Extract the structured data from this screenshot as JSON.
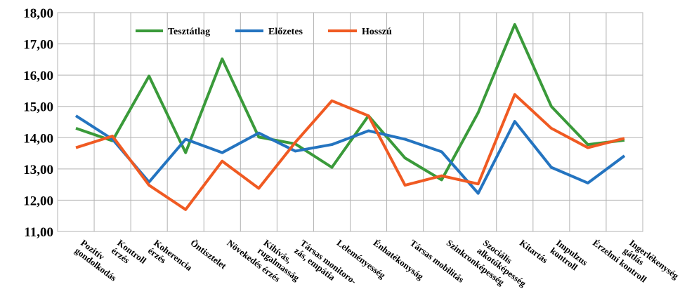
{
  "chart_data": {
    "type": "line",
    "title": "",
    "xlabel": "",
    "ylabel": "",
    "ylim": [
      11,
      18
    ],
    "yticks": [
      "11,00",
      "12,00",
      "13,00",
      "14,00",
      "15,00",
      "16,00",
      "17,00",
      "18,00"
    ],
    "grid": true,
    "legend_position": "top-left",
    "categories": [
      [
        "Pozitív",
        "gondolkodás"
      ],
      [
        "Kontroll",
        "érzés"
      ],
      [
        "Koherencia",
        "érzés"
      ],
      [
        "Öntisztelet"
      ],
      [
        "Növekedés érzés"
      ],
      [
        "Kihívás,",
        "rugalmasság"
      ],
      [
        "Társas monitoro-",
        "zás, empátia"
      ],
      [
        "Leleményesség"
      ],
      [
        "Énhatékonyság"
      ],
      [
        "Társas mobilitás"
      ],
      [
        "Szinkronképesség"
      ],
      [
        "Szociális",
        "alkotóképesség"
      ],
      [
        "Kitartás"
      ],
      [
        "Impulzus",
        "kontroll"
      ],
      [
        "Érzelmi kontroll"
      ],
      [
        "Ingerlékenység",
        "gátlás"
      ]
    ],
    "series": [
      {
        "name": "Tesztátlag",
        "color": "#3a9a3a",
        "values": [
          14.3,
          13.9,
          15.97,
          13.52,
          16.52,
          14.02,
          13.8,
          13.05,
          14.7,
          13.35,
          12.65,
          14.8,
          17.62,
          15.0,
          13.78,
          13.92
        ]
      },
      {
        "name": "Előzetes",
        "color": "#2474c0",
        "values": [
          14.7,
          13.95,
          12.58,
          13.95,
          13.52,
          14.15,
          13.57,
          13.78,
          14.22,
          13.95,
          13.55,
          12.22,
          14.52,
          13.05,
          12.55,
          13.42
        ]
      },
      {
        "name": "Hosszú",
        "color": "#f05a22",
        "values": [
          13.68,
          14.05,
          12.48,
          11.7,
          13.25,
          12.38,
          13.85,
          15.18,
          14.7,
          12.48,
          12.78,
          12.52,
          15.38,
          14.3,
          13.68,
          13.98
        ]
      }
    ]
  }
}
